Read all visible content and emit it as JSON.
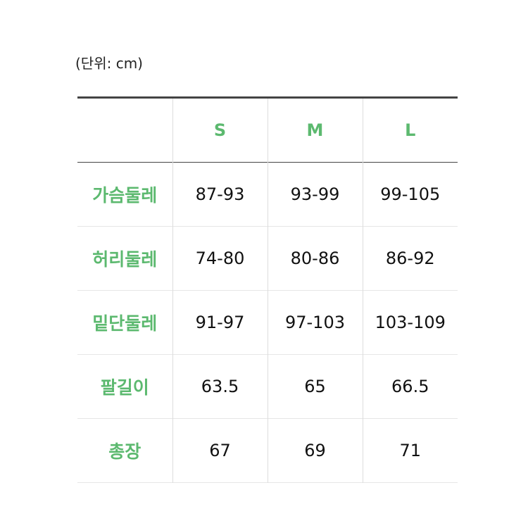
{
  "unit_note": "(단위: cm)",
  "columns": [
    "",
    "S",
    "M",
    "L"
  ],
  "rows": [
    {
      "label": "가슴둘레",
      "values": [
        "87-93",
        "93-99",
        "99-105"
      ]
    },
    {
      "label": "허리둘레",
      "values": [
        "74-80",
        "80-86",
        "86-92"
      ]
    },
    {
      "label": "밑단둘레",
      "values": [
        "91-97",
        "97-103",
        "103-109"
      ]
    },
    {
      "label": "팔길이",
      "values": [
        "63.5",
        "65",
        "66.5"
      ]
    },
    {
      "label": "총장",
      "values": [
        "67",
        "69",
        "71"
      ]
    }
  ],
  "colors": {
    "accent": "#5cb96f",
    "header_border": "#444444"
  }
}
